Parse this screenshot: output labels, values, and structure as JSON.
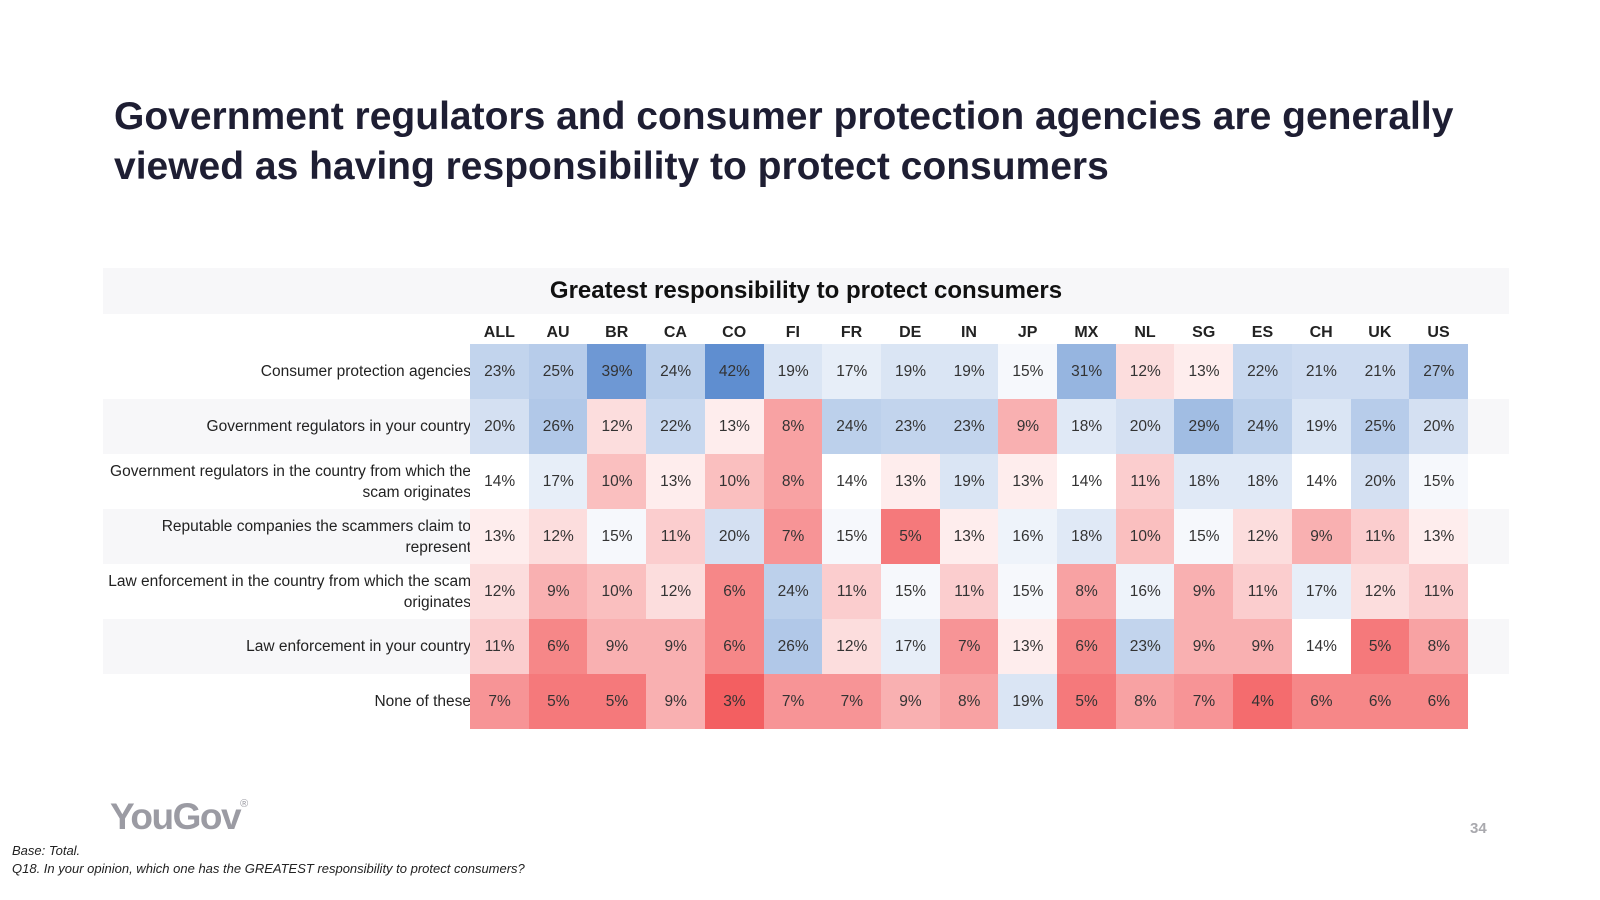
{
  "slide": {
    "title": "Government regulators and consumer protection agencies are generally viewed as having responsibility to protect consumers",
    "logo": "YouGov",
    "logo_mark": "®",
    "page_number": "34",
    "footnotes": [
      "Base: Total.",
      "Q18. In your opinion, which one has the GREATEST responsibility to protect consumers?"
    ]
  },
  "chart_data": {
    "type": "heatmap",
    "title": "Greatest responsibility to protect consumers",
    "unit": "%",
    "columns": [
      "ALL",
      "AU",
      "BR",
      "CA",
      "CO",
      "FI",
      "FR",
      "DE",
      "IN",
      "JP",
      "MX",
      "NL",
      "SG",
      "ES",
      "CH",
      "UK",
      "US"
    ],
    "rows": [
      {
        "label": "Consumer protection agencies",
        "values": [
          23,
          25,
          39,
          24,
          42,
          19,
          17,
          19,
          19,
          15,
          31,
          12,
          13,
          22,
          21,
          21,
          27
        ]
      },
      {
        "label": "Government regulators in your country",
        "values": [
          20,
          26,
          12,
          22,
          13,
          8,
          24,
          23,
          23,
          9,
          18,
          20,
          29,
          24,
          19,
          25,
          20
        ]
      },
      {
        "label": "Government regulators in the country from which the scam originates",
        "values": [
          14,
          17,
          10,
          13,
          10,
          8,
          14,
          13,
          19,
          13,
          14,
          11,
          18,
          18,
          14,
          20,
          15
        ]
      },
      {
        "label": "Reputable companies the scammers claim to represent",
        "values": [
          13,
          12,
          15,
          11,
          20,
          7,
          15,
          5,
          13,
          16,
          18,
          10,
          15,
          12,
          9,
          11,
          13
        ]
      },
      {
        "label": "Law enforcement in the country from which the scam originates",
        "values": [
          12,
          9,
          10,
          12,
          6,
          24,
          11,
          15,
          11,
          15,
          8,
          16,
          9,
          11,
          17,
          12,
          11
        ]
      },
      {
        "label": "Law enforcement in your country",
        "values": [
          11,
          6,
          9,
          9,
          6,
          26,
          12,
          17,
          7,
          13,
          6,
          23,
          9,
          9,
          14,
          5,
          8
        ]
      },
      {
        "label": "None of these",
        "values": [
          7,
          5,
          5,
          9,
          3,
          7,
          7,
          9,
          8,
          19,
          5,
          8,
          7,
          4,
          6,
          6,
          6
        ]
      }
    ],
    "colors": {
      "high": "#5f8ed0",
      "neutral": "#ffffff",
      "low": "#f35f61",
      "row_band": "#f7f7f9"
    }
  }
}
